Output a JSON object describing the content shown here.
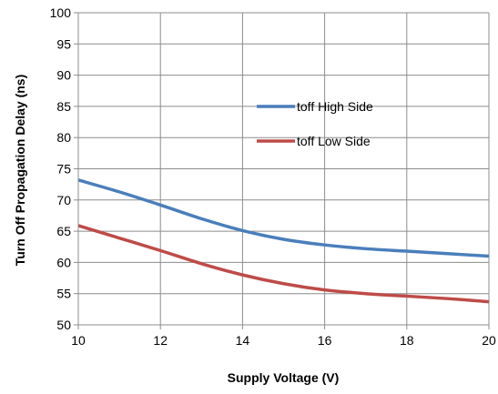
{
  "chart_data": {
    "type": "line",
    "xlabel": "Supply Voltage (V)",
    "ylabel": "Turn Off Propagation Delay (ns)",
    "xlim": [
      10,
      20
    ],
    "ylim": [
      50,
      100
    ],
    "x_ticks": [
      "10",
      "12",
      "14",
      "16",
      "18",
      "20"
    ],
    "y_ticks": [
      "50",
      "55",
      "60",
      "65",
      "70",
      "75",
      "80",
      "85",
      "90",
      "95",
      "100"
    ],
    "grid": true,
    "legend_position": "center-right",
    "series": [
      {
        "name": "toff High Side",
        "color": "#4a7ebb",
        "x": [
          10,
          11,
          12,
          13,
          14,
          15,
          16,
          17,
          18,
          19,
          20
        ],
        "values": [
          73.2,
          71.3,
          69.2,
          67.0,
          65.1,
          63.7,
          62.8,
          62.2,
          61.8,
          61.4,
          61.0
        ]
      },
      {
        "name": "toff Low Side",
        "color": "#be4b48",
        "x": [
          10,
          11,
          12,
          13,
          14,
          15,
          16,
          17,
          18,
          19,
          20
        ],
        "values": [
          65.9,
          63.9,
          61.9,
          59.8,
          58.0,
          56.6,
          55.6,
          55.0,
          54.6,
          54.2,
          53.7
        ]
      }
    ]
  }
}
